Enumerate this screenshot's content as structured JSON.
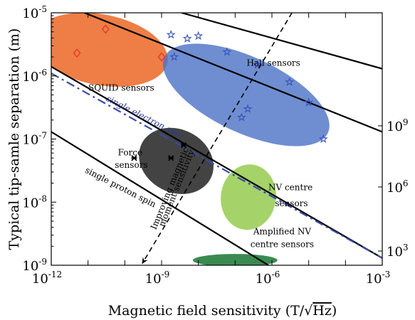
{
  "chart_data": {
    "type": "scatter",
    "xlabel": "Magnetic field sensitivity (T/√Hz)",
    "xlabel_main": "Magnetic field sensitivity (T/",
    "xlabel_sqrt": "Hz",
    "xlabel_close": ")",
    "ylabel": "Typical tip-samle separation (m)",
    "x_scale": "log",
    "y_scale": "log",
    "xlim": [
      1e-12,
      0.001
    ],
    "ylim": [
      1e-09,
      1e-05
    ],
    "grid": false,
    "x_ticks": [
      {
        "value": 1e-12,
        "base": "10",
        "exp": "-12"
      },
      {
        "value": 1e-09,
        "base": "10",
        "exp": "-9"
      },
      {
        "value": 1e-06,
        "base": "10",
        "exp": "-6"
      },
      {
        "value": 0.001,
        "base": "10",
        "exp": "-3"
      }
    ],
    "y_ticks": [
      {
        "value": 1e-09,
        "base": "10",
        "exp": "-9"
      },
      {
        "value": 1e-08,
        "base": "10",
        "exp": "-8"
      },
      {
        "value": 1e-07,
        "base": "10",
        "exp": "-7"
      },
      {
        "value": 1e-06,
        "base": "10",
        "exp": "-6"
      },
      {
        "value": 1e-05,
        "base": "10",
        "exp": "-5"
      }
    ],
    "right_ticks": [
      {
        "label_y": 1.4e-09,
        "base": "10",
        "exp": "3"
      },
      {
        "label_y": 1.45e-08,
        "base": "10",
        "exp": "6"
      },
      {
        "label_y": 1.35e-07,
        "base": "10",
        "exp": "9"
      }
    ],
    "regions": [
      {
        "name": "SQUID sensors",
        "color": "#ee7e45",
        "opacity": 1.0,
        "cx": 2.2e-11,
        "cy": 2.6e-06,
        "rx_decades": 1.85,
        "ry_decades": 0.56,
        "angle": 11
      },
      {
        "name": "Hall sensors",
        "color": "#4a72c6",
        "opacity": 0.8,
        "cx": 2e-07,
        "cy": 5e-07,
        "rx_decades": 2.45,
        "ry_decades": 0.6,
        "angle": 25
      },
      {
        "name": "Force sensors",
        "color": "#333333",
        "opacity": 0.92,
        "cx": 2.5e-09,
        "cy": 4.5e-08,
        "rx_decades": 1.05,
        "ry_decades": 0.5,
        "angle": 27
      },
      {
        "name": "NV centre sensors",
        "color": "#9dcf5c",
        "opacity": 0.92,
        "cx": 2.3e-07,
        "cy": 1.2e-08,
        "rx_decades": 0.75,
        "ry_decades": 0.52,
        "angle": 8
      },
      {
        "name": "Amplified NV centre sensors",
        "color": "#3a8a52",
        "opacity": 1.0,
        "cx": 1e-07,
        "cy": 1.2e-09,
        "rx_decades": 1.15,
        "ry_decades": 0.1,
        "angle": 0
      }
    ],
    "series": [
      {
        "name": "SQUID",
        "marker": "diamond",
        "color": "#e8342a",
        "points": [
          [
            3e-11,
            5.5e-06
          ],
          [
            5e-12,
            2.3e-06
          ],
          [
            1e-09,
            2e-06
          ]
        ]
      },
      {
        "name": "Hall",
        "marker": "star",
        "color": "#3852b8",
        "points": [
          [
            1.8e-09,
            4.5e-06
          ],
          [
            5e-09,
            3.9e-06
          ],
          [
            1e-08,
            4.3e-06
          ],
          [
            6e-08,
            2.4e-06
          ],
          [
            2.2e-09,
            2e-06
          ],
          [
            4e-07,
            1.5e-06
          ],
          [
            3e-06,
            8e-07
          ],
          [
            1e-05,
            3.8e-07
          ],
          [
            2.2e-07,
            3e-07
          ],
          [
            1.5e-07,
            2.2e-07
          ],
          [
            2.5e-05,
            1e-07
          ]
        ]
      },
      {
        "name": "Force",
        "marker": "cross",
        "color": "#000000",
        "points": [
          [
            4e-09,
            8e-08
          ],
          [
            1.8e-10,
            5e-08
          ],
          [
            1.8e-09,
            5e-08
          ]
        ]
      }
    ],
    "lines": [
      {
        "name": "upper-diagonal",
        "style": "solid",
        "color": "#000000",
        "points": [
          [
            8e-12,
            1e-05
          ],
          [
            0.001,
            1.3e-07
          ]
        ]
      },
      {
        "name": "hall-upper",
        "style": "solid",
        "color": "#000000",
        "points": [
          [
            3.5e-09,
            1e-05
          ],
          [
            0.001,
            1.3e-06
          ]
        ]
      },
      {
        "name": "single-electron-spin",
        "style": "solid",
        "color": "#000000",
        "points": [
          [
            1e-12,
            1.4e-06
          ],
          [
            0.001,
            1.3e-09
          ]
        ]
      },
      {
        "name": "single-proton-spin",
        "style": "solid",
        "color": "#000000",
        "points": [
          [
            1e-12,
            1.3e-07
          ],
          [
            8e-07,
            1e-09
          ]
        ]
      },
      {
        "name": "single-electron-spin-dashed",
        "style": "dashdot",
        "color": "#3a4aa8",
        "points": [
          [
            1e-12,
            1.1e-06
          ],
          [
            0.001,
            1.3e-09
          ]
        ]
      },
      {
        "name": "improving-arrow",
        "style": "dashed",
        "color": "#000000",
        "points": [
          [
            3.5e-06,
            1e-05
          ],
          [
            3e-10,
            1.07e-09
          ]
        ],
        "arrow": true
      }
    ],
    "annotations": [
      {
        "text": "Hall sensors",
        "x": 1.1e-06,
        "y": 1.45e-06,
        "rotate": 0
      },
      {
        "text": "SQUID sensors",
        "x": 8e-11,
        "y": 5.8e-07,
        "rotate": 0
      },
      {
        "text": "single electron spin",
        "x": 3e-11,
        "y": 4.1e-07,
        "rotate": 27,
        "color": "#283a96",
        "italic": true
      },
      {
        "text": "Force",
        "x": 1.4e-10,
        "y": 5.5e-08,
        "rotate": 0
      },
      {
        "text": "sensors",
        "x": 1.5e-10,
        "y": 3.5e-08,
        "rotate": 0
      },
      {
        "text": "single proton spin",
        "x": 8e-12,
        "y": 3e-08,
        "rotate": 27
      },
      {
        "text": "NV centre",
        "x": 3.2e-06,
        "y": 1.55e-08,
        "rotate": 0
      },
      {
        "text": "sensors",
        "x": 3.4e-06,
        "y": 8.6e-09,
        "rotate": 0
      },
      {
        "text": "Improving magnetic",
        "x": 7e-10,
        "y": 3.6e-09,
        "rotate": -68
      },
      {
        "text": "moment sensitivity",
        "x": 1.15e-09,
        "y": 4e-09,
        "rotate": -68
      },
      {
        "text": "Amplified NV",
        "x": 1.9e-06,
        "y": 3.1e-09,
        "rotate": 0
      },
      {
        "text": "centre sensors",
        "x": 1.9e-06,
        "y": 1.95e-09,
        "rotate": 0
      }
    ]
  }
}
